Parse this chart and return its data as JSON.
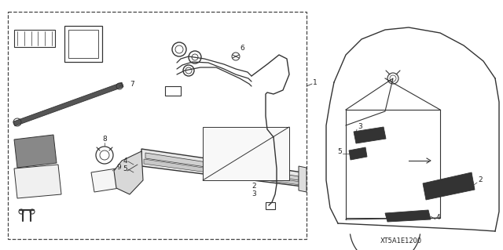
{
  "bg_color": "#ffffff",
  "diagram_code": "XT5A1E1200",
  "fig_width": 6.4,
  "fig_height": 3.19,
  "dpi": 100,
  "line_color": "#333333",
  "text_color": "#222222"
}
